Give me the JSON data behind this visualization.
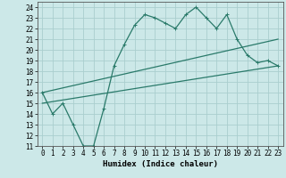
{
  "title": "",
  "xlabel": "Humidex (Indice chaleur)",
  "ylabel": "",
  "background_color": "#cce8e8",
  "grid_color": "#aacece",
  "line_color": "#2a7a6a",
  "xlim": [
    -0.5,
    23.5
  ],
  "ylim": [
    11,
    24.5
  ],
  "xticks": [
    0,
    1,
    2,
    3,
    4,
    5,
    6,
    7,
    8,
    9,
    10,
    11,
    12,
    13,
    14,
    15,
    16,
    17,
    18,
    19,
    20,
    21,
    22,
    23
  ],
  "yticks": [
    11,
    12,
    13,
    14,
    15,
    16,
    17,
    18,
    19,
    20,
    21,
    22,
    23,
    24
  ],
  "line1_x": [
    0,
    1,
    2,
    3,
    4,
    5,
    6,
    7,
    8,
    9,
    10,
    11,
    12,
    13,
    14,
    15,
    16,
    17,
    18,
    19,
    20,
    21,
    22,
    23
  ],
  "line1_y": [
    16.0,
    14.0,
    15.0,
    13.0,
    11.0,
    11.0,
    14.5,
    18.5,
    20.5,
    22.3,
    23.3,
    23.0,
    22.5,
    22.0,
    23.3,
    24.0,
    23.0,
    22.0,
    23.3,
    21.0,
    19.5,
    18.8,
    19.0,
    18.5
  ],
  "line2_x": [
    0,
    23
  ],
  "line2_y": [
    15.0,
    18.5
  ],
  "line3_x": [
    0,
    23
  ],
  "line3_y": [
    16.0,
    21.0
  ],
  "tick_fontsize": 5.5,
  "xlabel_fontsize": 6.5
}
